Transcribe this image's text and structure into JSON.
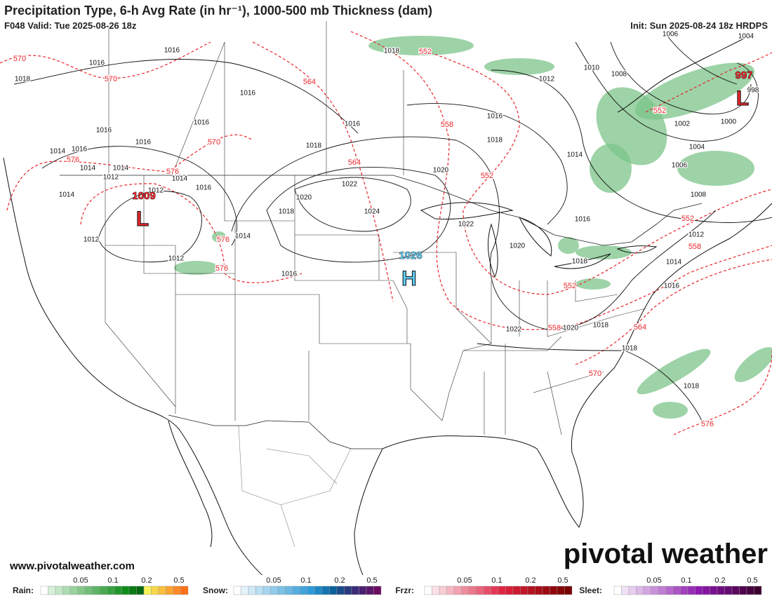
{
  "header": {
    "title": "Precipitation Type, 6-h Avg Rate (in hr⁻¹), 1000-500 mb Thickness (dam)",
    "valid": "F048 Valid: Tue 2025-08-26 18z",
    "init": "Init: Sun 2025-08-24 18z HRDPS"
  },
  "centers": [
    {
      "letter": "L",
      "pressure": 1009
    },
    {
      "letter": "H",
      "pressure": 1026
    },
    {
      "letter": "L",
      "pressure": 997
    }
  ],
  "isobar_labels": [
    1016,
    1016,
    1018,
    1016,
    1016,
    1016,
    1016,
    1014,
    1016,
    1014,
    1014,
    1012,
    1012,
    1014,
    1016,
    1014,
    1016,
    1018,
    1018,
    1012,
    1016,
    1018,
    1020,
    1022,
    1020,
    1024,
    1018,
    1014,
    1012,
    1012,
    1016,
    1022,
    1020,
    1018,
    1014,
    1010,
    1008,
    1006,
    1004,
    998,
    1002,
    1000,
    1004,
    1006,
    1008,
    1012,
    1014,
    1016,
    1016,
    1022,
    1020,
    1018,
    1018,
    1018
  ],
  "thickness_labels": [
    570,
    570,
    570,
    576,
    576,
    564,
    552,
    558,
    564,
    552,
    552,
    552,
    558,
    552,
    558,
    564,
    570,
    576,
    576,
    576
  ],
  "footer": {
    "url": "www.pivotalweather.com",
    "logo": "pivotal weather"
  },
  "legend": [
    {
      "label": "Rain:",
      "ticks": [
        0.05,
        0.1,
        0.2,
        0.5
      ]
    },
    {
      "label": "Snow:",
      "ticks": [
        0.05,
        0.1,
        0.2,
        0.5
      ]
    },
    {
      "label": "Frzr:",
      "ticks": [
        0.05,
        0.1,
        0.2,
        0.5
      ]
    },
    {
      "label": "Sleet:",
      "ticks": [
        0.05,
        0.1,
        0.2,
        0.5
      ]
    }
  ]
}
